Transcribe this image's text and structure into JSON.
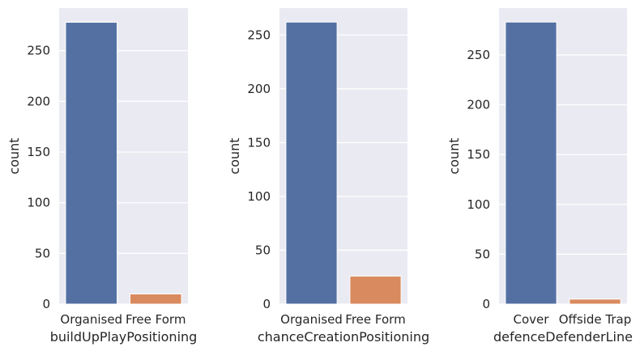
{
  "chart_data": [
    {
      "type": "bar",
      "categories": [
        "Organised",
        "Free Form"
      ],
      "values": [
        278,
        10
      ],
      "colors": [
        "#5470a3",
        "#d98a5e"
      ],
      "xlabel": "buildUpPlayPositioning",
      "ylabel": "count",
      "ylim": [
        0,
        292
      ],
      "yticks": [
        0,
        50,
        100,
        150,
        200,
        250
      ],
      "grid": true,
      "background": "#eaeaf2"
    },
    {
      "type": "bar",
      "categories": [
        "Organised",
        "Free Form"
      ],
      "values": [
        262,
        26
      ],
      "colors": [
        "#5470a3",
        "#d98a5e"
      ],
      "xlabel": "chanceCreationPositioning",
      "ylabel": "count",
      "ylim": [
        0,
        275
      ],
      "yticks": [
        0,
        50,
        100,
        150,
        200,
        250
      ],
      "grid": true,
      "background": "#eaeaf2"
    },
    {
      "type": "bar",
      "categories": [
        "Cover",
        "Offside Trap"
      ],
      "values": [
        283,
        5
      ],
      "colors": [
        "#5470a3",
        "#d98a5e"
      ],
      "xlabel": "defenceDefenderLine",
      "ylabel": "count",
      "ylim": [
        0,
        297
      ],
      "yticks": [
        0,
        50,
        100,
        150,
        200,
        250
      ],
      "grid": true,
      "background": "#eaeaf2"
    }
  ]
}
